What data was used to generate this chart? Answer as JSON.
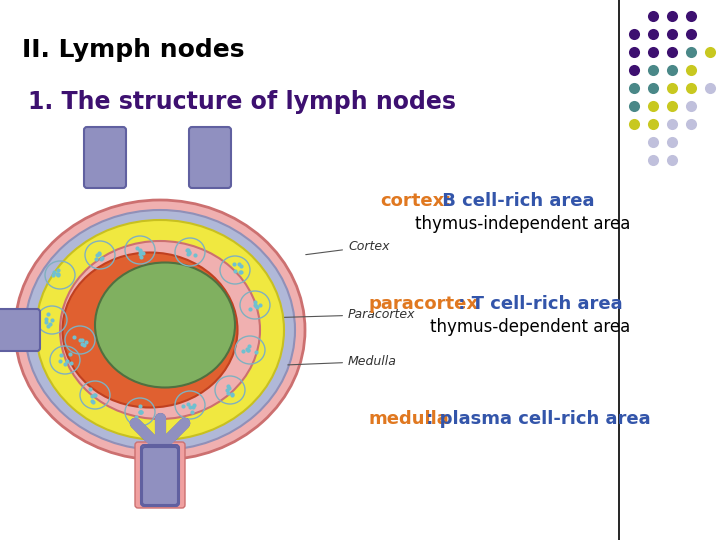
{
  "title1": "II. Lymph nodes",
  "title2": "1. The structure of lymph nodes",
  "title1_color": "#000000",
  "title2_color": "#3d1070",
  "title1_fontsize": 18,
  "title2_fontsize": 17,
  "background_color": "#ffffff",
  "purple": "#3d1070",
  "teal": "#4a8888",
  "yellow_dot": "#c8c820",
  "lavender": "#c0c0dc",
  "annotation_cortex_label": "cortex:",
  "annotation_cortex_rest": " B cell-rich area",
  "annotation_thymus_indep": "thymus-independent area",
  "annotation_paracortex_label": "paracortex",
  "annotation_paracortex_rest": " : T cell-rich area",
  "annotation_thymus_dep": "thymus-dependent area",
  "annotation_medulla_label": "medulla",
  "annotation_medulla_rest": " : plasma cell-rich area",
  "orange_color": "#e07820",
  "blue_color": "#3355aa",
  "black_color": "#000000",
  "ann_fontsize": 13,
  "ann_fontsize2": 12,
  "diagram_label_fontsize": 9
}
